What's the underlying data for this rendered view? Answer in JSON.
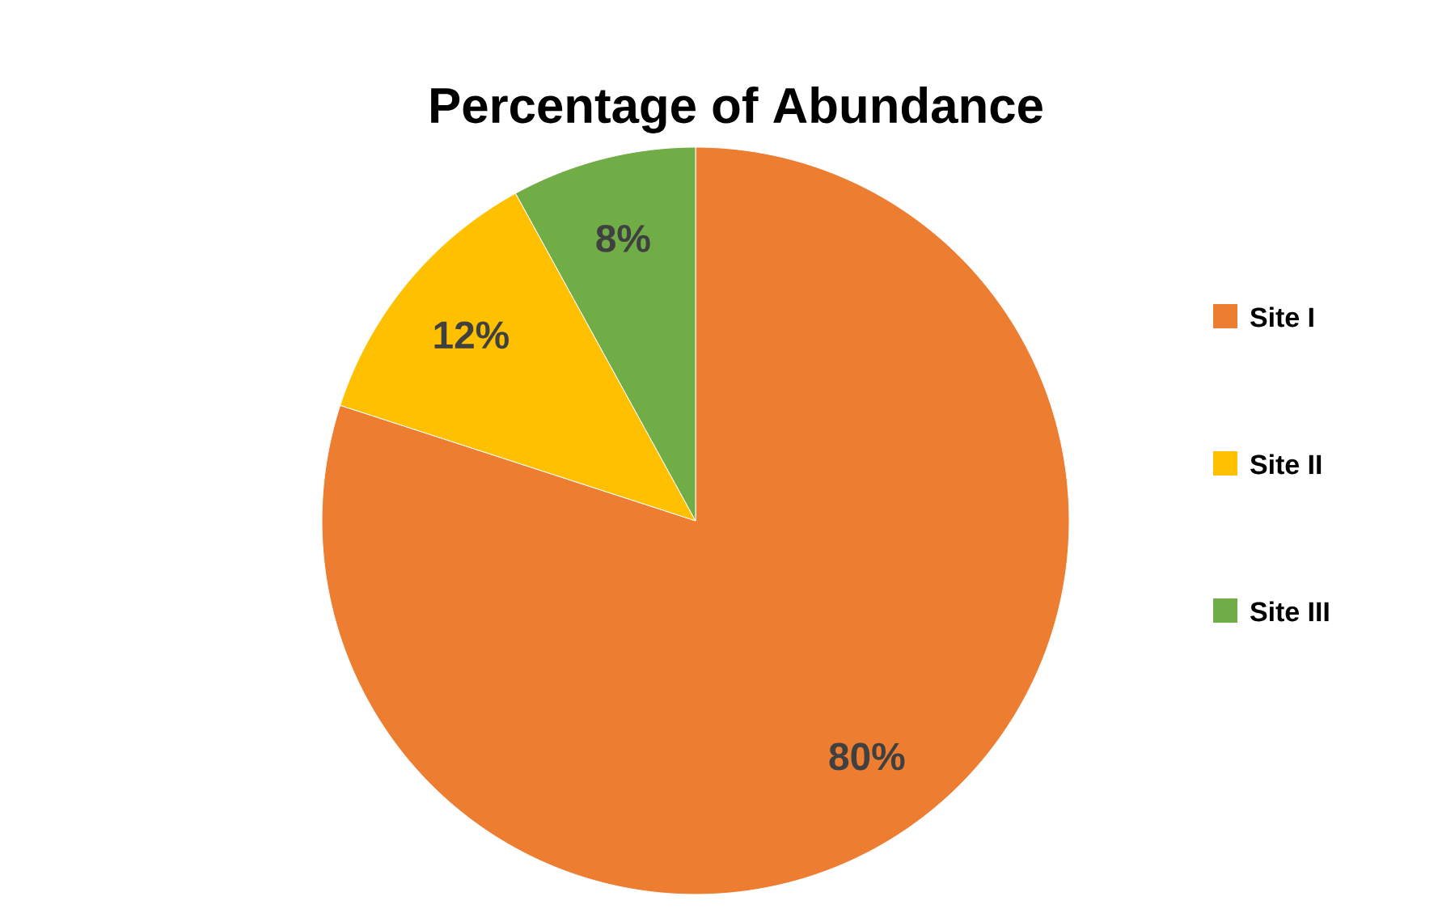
{
  "chart_data": {
    "type": "pie",
    "title": "Percentage of Abundance",
    "categories": [
      "Site I",
      "Site II",
      "Site III"
    ],
    "values": [
      80,
      12,
      8
    ],
    "colors": [
      "#ed7d31",
      "#ffc000",
      "#70ad47"
    ],
    "value_labels": [
      "80%",
      "12%",
      "8%"
    ],
    "legend": "right"
  }
}
